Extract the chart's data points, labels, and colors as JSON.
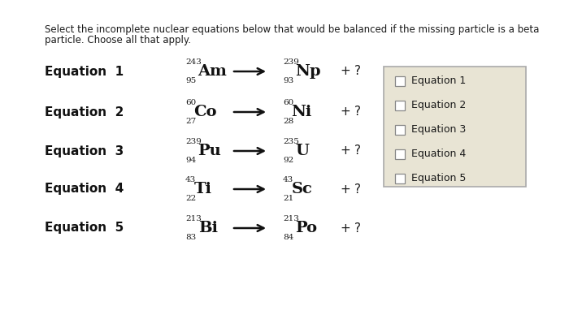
{
  "bg_color": "#ffffff",
  "instruction_line1": "Select the incomplete nuclear equations below that would be balanced if the missing particle is a beta",
  "instruction_line2": "particle. Choose all that apply.",
  "equations": [
    {
      "label": "Equation  1",
      "reactant_mass": "243",
      "reactant_atomic": "95",
      "reactant_symbol": "Am",
      "product_mass": "239",
      "product_atomic": "93",
      "product_symbol": "Np"
    },
    {
      "label": "Equation  2",
      "reactant_mass": "60",
      "reactant_atomic": "27",
      "reactant_symbol": "Co",
      "product_mass": "60",
      "product_atomic": "28",
      "product_symbol": "Ni"
    },
    {
      "label": "Equation  3",
      "reactant_mass": "239",
      "reactant_atomic": "94",
      "reactant_symbol": "Pu",
      "product_mass": "235",
      "product_atomic": "92",
      "product_symbol": "U"
    },
    {
      "label": "Equation  4",
      "reactant_mass": "43",
      "reactant_atomic": "22",
      "reactant_symbol": "Ti",
      "product_mass": "43",
      "product_atomic": "21",
      "product_symbol": "Sc"
    },
    {
      "label": "Equation  5",
      "reactant_mass": "213",
      "reactant_atomic": "83",
      "reactant_symbol": "Bi",
      "product_mass": "213",
      "product_atomic": "84",
      "product_symbol": "Po"
    }
  ],
  "checkbox_labels": [
    "Equation 1",
    "Equation 2",
    "Equation 3",
    "Equation 4",
    "Equation 5"
  ],
  "checkbox_bg": "#e8e4d4",
  "checkbox_border": "#aaaaaa",
  "text_color": "#1a1a1a",
  "eq_label_color": "#111111",
  "symbol_color": "#111111",
  "arrow_color": "#111111",
  "instruction_fontsize": 8.5,
  "label_fontsize": 11.0,
  "symbol_fontsize": 14.0,
  "script_fontsize": 7.5,
  "plus_fontsize": 11.0
}
